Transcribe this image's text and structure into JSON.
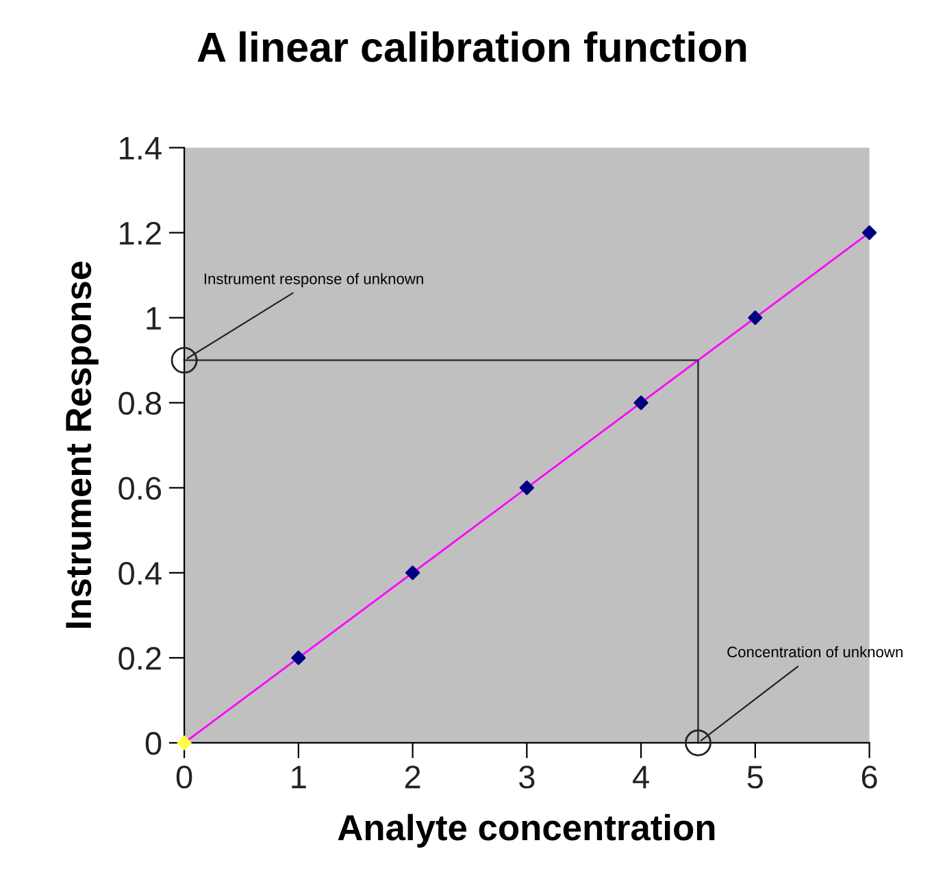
{
  "chart_data": {
    "type": "scatter",
    "title": "A linear calibration function",
    "xlabel": "Analyte concentration",
    "ylabel": "Instrument Response",
    "x": [
      0,
      1,
      2,
      3,
      4,
      5,
      6
    ],
    "series": [
      {
        "type": "line",
        "color": "#ff00ff",
        "x": [
          0,
          6
        ],
        "values": [
          0,
          1.2
        ]
      },
      {
        "type": "line",
        "color": "#404040",
        "x": [
          0,
          4.5,
          4.5
        ],
        "values": [
          0.9,
          0.9,
          0
        ]
      },
      {
        "color": "#000080",
        "colors": [
          "#ffff40",
          "#000080",
          "#000080",
          "#000080",
          "#000080",
          "#000080",
          "#000080"
        ],
        "values": [
          0,
          0.2,
          0.4,
          0.6,
          0.8,
          1.0,
          1.2
        ],
        "marker": "diamond"
      }
    ],
    "annotations": [
      {
        "text": "Instrument response of unknown",
        "x": 0,
        "y": 0.9
      },
      {
        "text": "Concentration of unknown",
        "x": 4.5,
        "y": 0
      }
    ],
    "xlim": [
      0,
      6
    ],
    "ylim": [
      0,
      1.4
    ],
    "xticks": [
      0,
      1,
      2,
      3,
      4,
      5,
      6
    ],
    "yticks": [
      0,
      0.2,
      0.4,
      0.6,
      0.8,
      1,
      1.2,
      1.4
    ],
    "grid": false,
    "legend": false
  }
}
